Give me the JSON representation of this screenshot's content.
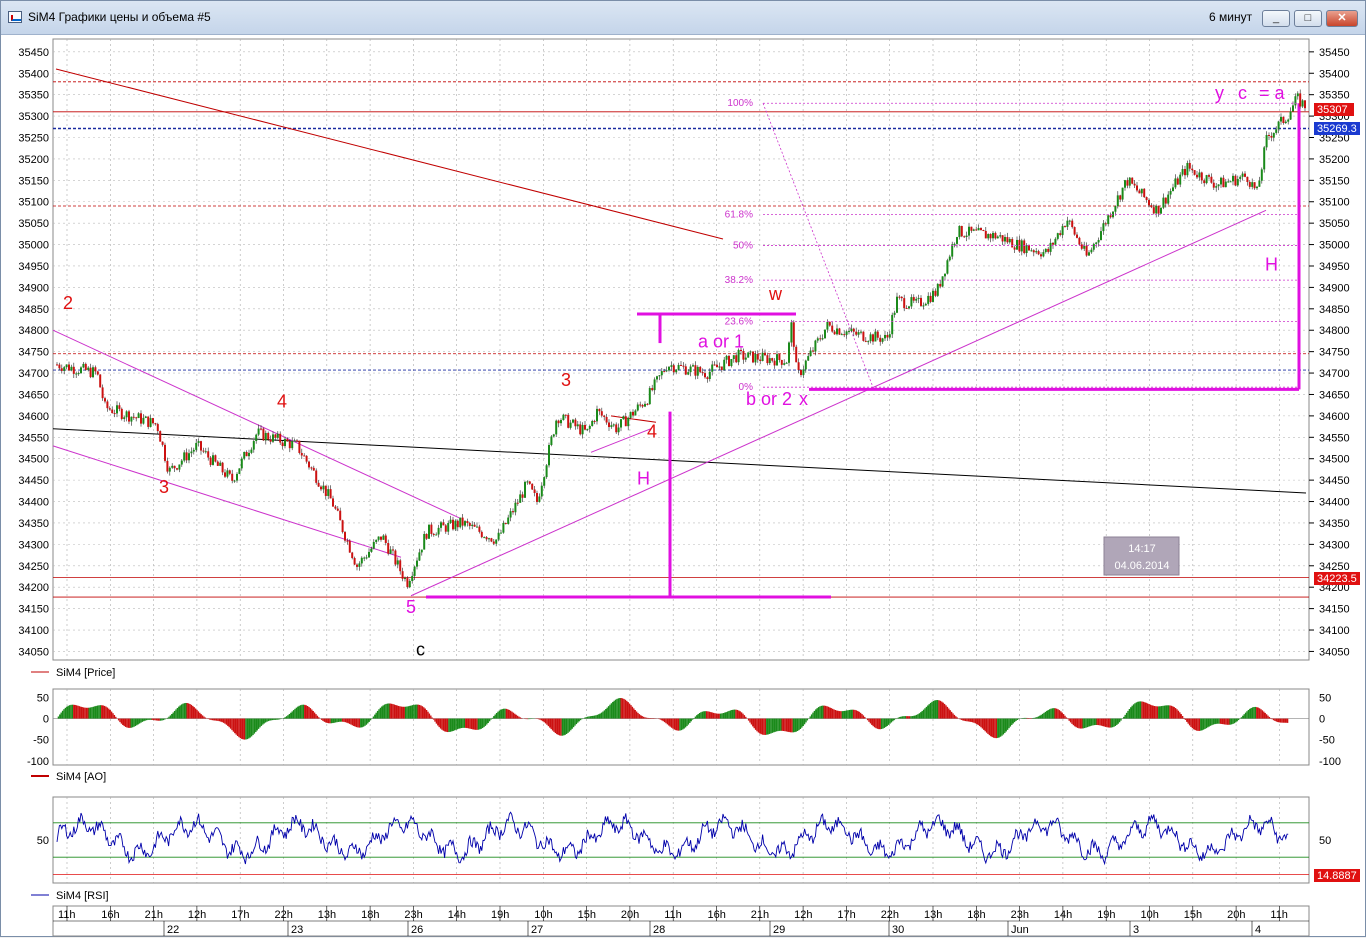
{
  "window": {
    "title": "SiM4 Графики цены и объема #5",
    "timeframe": "6 минут",
    "buttons": {
      "minimize": "_",
      "maximize": "□",
      "close": "✕"
    }
  },
  "colors": {
    "up": "#1a8a1a",
    "down": "#cc1111",
    "magenta": "#e010e0",
    "red_label": "#e01010",
    "rsi_line": "#0000aa"
  },
  "chart_data": [
    {
      "type": "line",
      "name": "SiM4 [Price]",
      "legend": "SiM4 [Price]",
      "ylim": [
        34030,
        35480
      ],
      "yticks": [
        34050,
        34100,
        34150,
        34200,
        34250,
        34300,
        34350,
        34400,
        34450,
        34500,
        34550,
        34600,
        34650,
        34700,
        34750,
        34800,
        34850,
        34900,
        34950,
        35000,
        35050,
        35100,
        35150,
        35200,
        35250,
        35300,
        35350,
        35400,
        35450
      ],
      "x_time_labels": [
        "11h",
        "16h",
        "21h",
        "12h",
        "17h",
        "22h",
        "13h",
        "18h",
        "23h",
        "14h",
        "19h",
        "10h",
        "15h",
        "20h",
        "11h",
        "16h",
        "21h",
        "12h",
        "17h",
        "22h",
        "13h",
        "18h",
        "23h",
        "14h",
        "19h",
        "10h",
        "15h",
        "20h",
        "11h"
      ],
      "x_date_labels": [
        "22",
        "23",
        "26",
        "27",
        "28",
        "29",
        "30",
        "Jun",
        "3",
        "4"
      ],
      "price_path": [
        [
          0,
          34720
        ],
        [
          40,
          34700
        ],
        [
          48,
          34620
        ],
        [
          100,
          34580
        ],
        [
          112,
          34470
        ],
        [
          140,
          34530
        ],
        [
          175,
          34450
        ],
        [
          200,
          34560
        ],
        [
          240,
          34530
        ],
        [
          275,
          34400
        ],
        [
          300,
          34250
        ],
        [
          325,
          34320
        ],
        [
          350,
          34210
        ],
        [
          370,
          34330
        ],
        [
          405,
          34350
        ],
        [
          440,
          34310
        ],
        [
          470,
          34440
        ],
        [
          480,
          34400
        ],
        [
          500,
          34600
        ],
        [
          530,
          34560
        ],
        [
          540,
          34610
        ],
        [
          560,
          34570
        ],
        [
          590,
          34640
        ],
        [
          610,
          34720
        ],
        [
          650,
          34700
        ],
        [
          680,
          34740
        ],
        [
          730,
          34730
        ],
        [
          735,
          34820
        ],
        [
          740,
          34690
        ],
        [
          770,
          34810
        ],
        [
          800,
          34790
        ],
        [
          830,
          34780
        ],
        [
          840,
          34870
        ],
        [
          860,
          34860
        ],
        [
          880,
          34890
        ],
        [
          900,
          35030
        ],
        [
          940,
          35020
        ],
        [
          960,
          35000
        ],
        [
          990,
          34980
        ],
        [
          1010,
          35060
        ],
        [
          1030,
          34970
        ],
        [
          1070,
          35150
        ],
        [
          1100,
          35080
        ],
        [
          1130,
          35180
        ],
        [
          1160,
          35140
        ],
        [
          1190,
          35160
        ],
        [
          1200,
          35120
        ],
        [
          1210,
          35250
        ],
        [
          1230,
          35300
        ],
        [
          1240,
          35340
        ],
        [
          1250,
          35320
        ]
      ],
      "last_price": "35269.3",
      "price_tags": [
        "35307",
        "35269.3",
        "34223.5"
      ],
      "hlines": [
        35380,
        35310,
        35271,
        35090,
        34745,
        34707,
        34223,
        34177
      ],
      "fib": [
        {
          "label": "100%",
          "value": 35330
        },
        {
          "label": "61.8%",
          "value": 35070
        },
        {
          "label": "50%",
          "value": 34998
        },
        {
          "label": "38.2%",
          "value": 34917
        },
        {
          "label": "23.6%",
          "value": 34820
        },
        {
          "label": "0%",
          "value": 34667
        }
      ],
      "clock": {
        "time": "14:17",
        "date": "04.06.2014"
      },
      "annotations": [
        {
          "text": "2",
          "color": "red",
          "x": 62,
          "y": 34850
        },
        {
          "text": "3",
          "color": "red",
          "x": 158,
          "y": 34420
        },
        {
          "text": "4",
          "color": "red",
          "x": 276,
          "y": 34620
        },
        {
          "text": "5",
          "color": "magenta",
          "x": 405,
          "y": 34140
        },
        {
          "text": "c",
          "color": "black",
          "x": 415,
          "y": 34040
        },
        {
          "text": "3",
          "color": "red",
          "x": 560,
          "y": 34670
        },
        {
          "text": "4",
          "color": "red",
          "x": 646,
          "y": 34550
        },
        {
          "text": "H",
          "color": "magenta",
          "x": 636,
          "y": 34440
        },
        {
          "text": "w",
          "color": "red",
          "x": 768,
          "y": 34870
        },
        {
          "text": "a or 1",
          "color": "magenta",
          "x": 697,
          "y": 34760
        },
        {
          "text": "b or 2",
          "color": "magenta",
          "x": 745,
          "y": 34625
        },
        {
          "text": "x",
          "color": "magenta",
          "x": 798,
          "y": 34625
        },
        {
          "text": "y",
          "color": "magenta",
          "x": 1214,
          "y": 35340
        },
        {
          "text": "c",
          "color": "magenta",
          "x": 1237,
          "y": 35340
        },
        {
          "text": "= a",
          "color": "magenta",
          "x": 1258,
          "y": 35340
        },
        {
          "text": "H",
          "color": "magenta",
          "x": 1264,
          "y": 34940
        }
      ]
    },
    {
      "type": "bar",
      "name": "SiM4 [AO]",
      "legend": "SiM4 [AO]",
      "ylim": [
        -110,
        70
      ],
      "yticks_left": [
        50,
        0,
        -50,
        -100
      ],
      "yticks_right": [
        50,
        0,
        -50,
        -100
      ]
    },
    {
      "type": "line",
      "name": "SiM4 [RSI]",
      "legend": "SiM4 [RSI]",
      "ylim": [
        0,
        100
      ],
      "levels": [
        70,
        30
      ],
      "ytick": 50,
      "last_value": "14.8887"
    }
  ]
}
